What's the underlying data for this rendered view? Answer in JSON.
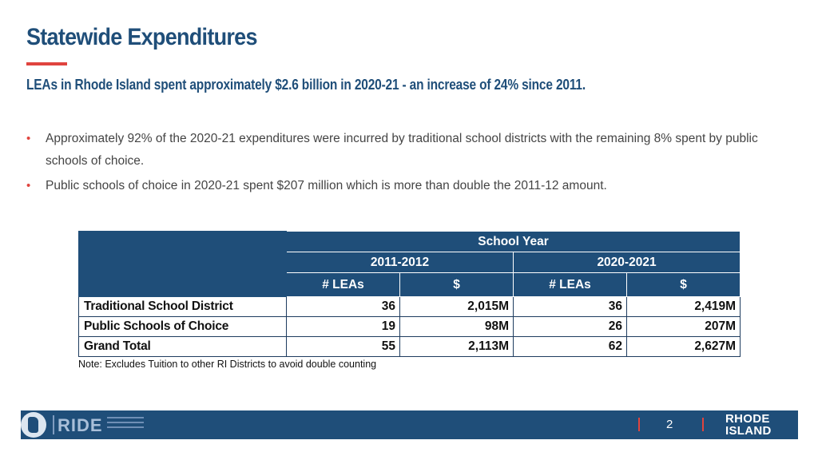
{
  "header": {
    "title": "Statewide Expenditures",
    "subtitle": "LEAs in Rhode Island spent approximately $2.6 billion in 2020-21 - an increase of 24% since 2011."
  },
  "bullets": [
    "Approximately 92% of the 2020-21 expenditures were incurred by traditional school districts with the remaining 8% spent by public schools of choice.",
    "Public schools of choice in 2020-21 spent $207 million which is more than double the 2011-12 amount."
  ],
  "table": {
    "group_header": "School Year",
    "years": [
      "2011-2012",
      "2020-2021"
    ],
    "columns": [
      "# LEAs",
      "$",
      "# LEAs",
      "$"
    ],
    "rows": [
      {
        "label": "Traditional School District",
        "values": [
          "36",
          "2,015M",
          "36",
          "2,419M"
        ]
      },
      {
        "label": "Public Schools of Choice",
        "values": [
          "19",
          "98M",
          "26",
          "207M"
        ]
      },
      {
        "label": "Grand Total",
        "values": [
          "55",
          "2,113M",
          "62",
          "2,627M"
        ]
      }
    ]
  },
  "note": "Note: Excludes Tuition to other RI Districts to avoid double counting",
  "footer": {
    "logo_text": "RIDE",
    "page_number": "2",
    "brand_line1": "RHODE",
    "brand_line2": "ISLAND"
  },
  "colors": {
    "navy": "#1f4e79",
    "accent_red": "#e0443e"
  },
  "icons": {
    "bullet": "bullet-dot-icon",
    "logo": "rhode-island-state-icon"
  }
}
